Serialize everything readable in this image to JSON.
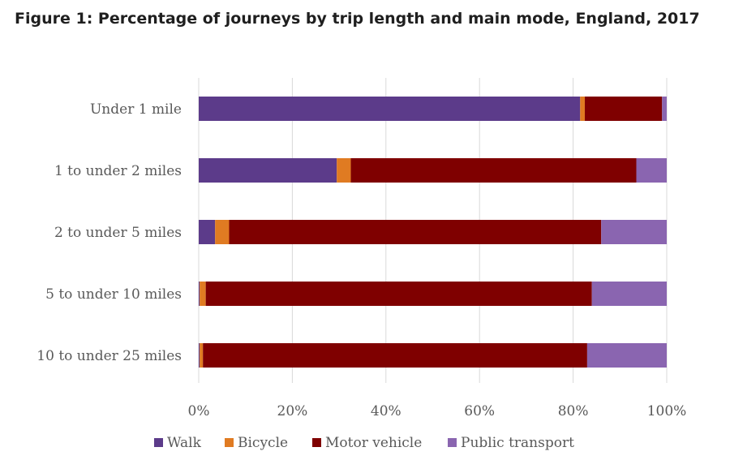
{
  "figure": {
    "title": "Figure 1: Percentage of journeys by trip length and main mode, England, 2017"
  },
  "chart_data": {
    "type": "bar",
    "orientation": "horizontal",
    "stacked": true,
    "percent_axis": true,
    "categories": [
      "Under 1 mile",
      "1 to under 2 miles",
      "2 to under 5 miles",
      "5 to under 10 miles",
      "10 to under 25 miles"
    ],
    "series": [
      {
        "name": "Walk",
        "color": "#5c3b8a",
        "values": [
          81.5,
          29.5,
          3.5,
          0.2,
          0.2
        ]
      },
      {
        "name": "Bicycle",
        "color": "#e07b22",
        "values": [
          1.0,
          3.0,
          3.0,
          1.3,
          0.7
        ]
      },
      {
        "name": "Motor vehicle",
        "color": "#7f0000",
        "values": [
          16.5,
          61.0,
          79.5,
          82.5,
          82.1
        ]
      },
      {
        "name": "Public transport",
        "color": "#8a65b0",
        "values": [
          1.0,
          6.5,
          14.0,
          16.0,
          17.0
        ]
      }
    ],
    "xlim": [
      0,
      100
    ],
    "xticks": [
      "0%",
      "20%",
      "40%",
      "60%",
      "80%",
      "100%"
    ],
    "grid": true,
    "legend_position": "bottom"
  }
}
